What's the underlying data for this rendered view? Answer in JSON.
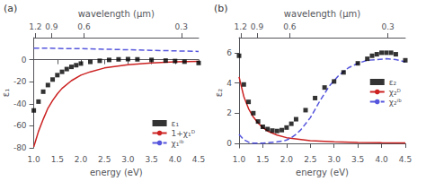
{
  "chart_data": [
    {
      "type": "line",
      "annotations": [
        "(a)"
      ],
      "xlabel": "energy (eV)",
      "ylabel": "ε₁",
      "x2label": "wavelength (μm)",
      "xlim": [
        1.0,
        4.5
      ],
      "xticks": [
        {
          "value": 1.0,
          "label": "1.0"
        },
        1.5,
        {
          "value": 2.0,
          "label": "2.0"
        },
        2.5,
        {
          "value": 3.0,
          "label": "3.0"
        },
        3.5,
        {
          "value": 4.0,
          "label": "4.0"
        },
        4.5
      ],
      "ylim": [
        -80,
        20
      ],
      "yticks": [
        -80,
        -60,
        -40,
        -20,
        0
      ],
      "x2lim": [
        1.0,
        4.5
      ],
      "x2ticks": [
        {
          "value": 1.0331666666666666,
          "label": "1.2"
        },
        {
          "value": 1.3775555555555556,
          "label": "0.9"
        },
        {
          "value": 2.0663333333333336,
          "label": "0.6"
        },
        {
          "value": 4.132666666666667,
          "label": "0.3"
        }
      ],
      "grid": false,
      "legend": "lower right",
      "series": [
        {
          "name": "ε₁",
          "type": "scatter",
          "color": "black",
          "marker": "square",
          "x": [
            1.0,
            1.1,
            1.2,
            1.3,
            1.4,
            1.5,
            1.6,
            1.7,
            1.8,
            1.9,
            2.0,
            2.2,
            2.4,
            2.6,
            2.8,
            3.0,
            3.2,
            3.5,
            3.8,
            4.0,
            4.2,
            4.5
          ],
          "values": [
            -46,
            -38,
            -29,
            -23,
            -18,
            -14,
            -11,
            -8.5,
            -6.5,
            -5.0,
            -3.5,
            -2.0,
            -1.0,
            -0.2,
            0.3,
            0.5,
            0.3,
            -0.2,
            -0.8,
            -1.2,
            -1.8,
            -3.0
          ]
        },
        {
          "name": "1+χ₁ᴰ",
          "type": "line",
          "color": "#cc2222",
          "line_style": "solid",
          "x": [
            1.0,
            1.05,
            1.1,
            1.2,
            1.3,
            1.4,
            1.5,
            1.6,
            1.8,
            2.0,
            2.2,
            2.5,
            3.0,
            3.5,
            4.0,
            4.5
          ],
          "values": [
            -79,
            -72,
            -65,
            -54,
            -44,
            -37,
            -31,
            -26,
            -19,
            -14,
            -11,
            -7.5,
            -4.5,
            -3.0,
            -2.0,
            -1.5
          ]
        },
        {
          "name": "χ₁ⁱᵇ",
          "type": "line",
          "color": "#5555dd",
          "line_style": "dashed",
          "x": [
            1.0,
            1.2,
            1.5,
            2.0,
            2.5,
            3.0,
            3.5,
            4.0,
            4.5
          ],
          "values": [
            10.5,
            10.5,
            10.2,
            10.0,
            9.5,
            9.0,
            8.5,
            8.0,
            7.5
          ]
        }
      ]
    },
    {
      "type": "line",
      "annotations": [
        "(b)"
      ],
      "xlabel": "energy (eV)",
      "ylabel": "ε₂",
      "x2label": "wavelength (μm)",
      "xlim": [
        1.0,
        4.5
      ],
      "xticks": [
        {
          "value": 1.0,
          "label": "1.0"
        },
        1.5,
        {
          "value": 2.0,
          "label": "2.0"
        },
        2.5,
        {
          "value": 3.0,
          "label": "3.0"
        },
        3.5,
        {
          "value": 4.0,
          "label": "4.0"
        },
        4.5
      ],
      "ylim": [
        -0.3,
        7
      ],
      "yticks": [
        0,
        2,
        4,
        6
      ],
      "x2lim": [
        1.0,
        4.5
      ],
      "x2ticks": [
        {
          "value": 1.0331666666666666,
          "label": "1.2"
        },
        {
          "value": 1.3775555555555556,
          "label": "0.9"
        },
        {
          "value": 2.0663333333333336,
          "label": "0.6"
        },
        {
          "value": 4.132666666666667,
          "label": "0.3"
        }
      ],
      "grid": false,
      "legend": "center right",
      "series": [
        {
          "name": "ε₂",
          "type": "scatter",
          "color": "black",
          "marker": "square",
          "x": [
            1.0,
            1.1,
            1.2,
            1.3,
            1.4,
            1.5,
            1.6,
            1.7,
            1.8,
            1.9,
            2.0,
            2.1,
            2.2,
            2.4,
            2.6,
            2.8,
            3.0,
            3.2,
            3.5,
            3.7,
            3.8,
            3.9,
            4.0,
            4.1,
            4.2,
            4.3,
            4.5
          ],
          "values": [
            5.8,
            3.9,
            2.75,
            2.0,
            1.45,
            1.1,
            0.95,
            0.85,
            0.82,
            0.88,
            1.05,
            1.3,
            1.6,
            2.2,
            3.0,
            3.7,
            4.1,
            4.7,
            5.3,
            5.6,
            5.8,
            5.9,
            6.0,
            6.0,
            6.0,
            5.9,
            5.5
          ]
        },
        {
          "name": "χ₂ᴰ",
          "type": "line",
          "color": "#cc2222",
          "line_style": "solid",
          "x": [
            1.0,
            1.1,
            1.2,
            1.3,
            1.4,
            1.5,
            1.6,
            1.8,
            2.0,
            2.5,
            3.0,
            3.5,
            4.0,
            4.5
          ],
          "values": [
            4.4,
            3.1,
            2.3,
            1.75,
            1.35,
            1.05,
            0.82,
            0.55,
            0.38,
            0.18,
            0.1,
            0.06,
            0.04,
            0.03
          ]
        },
        {
          "name": "χ₂ⁱᵇ",
          "type": "line",
          "color": "#5555dd",
          "line_style": "dashed",
          "x": [
            1.0,
            1.1,
            1.2,
            1.3,
            1.4,
            1.5,
            1.6,
            1.7,
            1.8,
            1.9,
            2.0,
            2.1,
            2.2,
            2.3,
            2.5,
            2.7,
            2.9,
            3.1,
            3.3,
            3.5,
            3.7,
            3.9,
            4.1,
            4.3,
            4.5
          ],
          "values": [
            0.6,
            0.25,
            0.08,
            0.02,
            0.01,
            0.02,
            0.04,
            0.07,
            0.1,
            0.15,
            0.22,
            0.38,
            0.6,
            0.9,
            1.7,
            2.8,
            3.8,
            4.5,
            5.0,
            5.3,
            5.5,
            5.55,
            5.6,
            5.55,
            5.4
          ]
        }
      ]
    }
  ]
}
